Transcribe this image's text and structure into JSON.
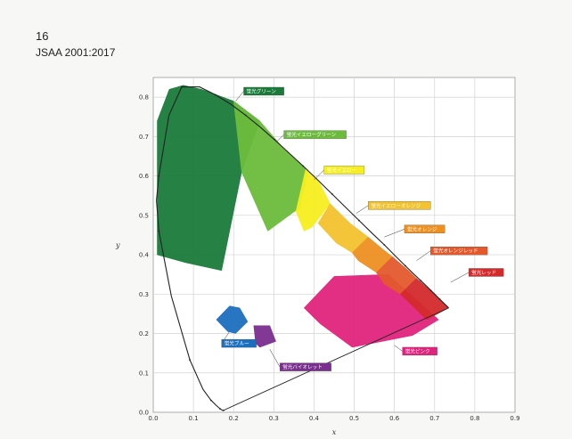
{
  "header": {
    "page_number": "16",
    "doc_id": "JSAA 2001:2017"
  },
  "chart_data": {
    "type": "chromaticity-diagram",
    "xlabel": "x",
    "ylabel": "y",
    "xlim": [
      0.0,
      0.9
    ],
    "ylim": [
      0.0,
      0.85
    ],
    "x_ticks": [
      "0.0",
      "0.1",
      "0.2",
      "0.3",
      "0.4",
      "0.5",
      "0.6",
      "0.7",
      "0.8",
      "0.9"
    ],
    "y_ticks": [
      "0.0",
      "0.1",
      "0.2",
      "0.3",
      "0.4",
      "0.5",
      "0.6",
      "0.7",
      "0.8"
    ],
    "grid": true,
    "spectral_locus": [
      [
        0.175,
        0.005
      ],
      [
        0.172,
        0.005
      ],
      [
        0.166,
        0.009
      ],
      [
        0.156,
        0.018
      ],
      [
        0.144,
        0.03
      ],
      [
        0.124,
        0.058
      ],
      [
        0.091,
        0.133
      ],
      [
        0.045,
        0.295
      ],
      [
        0.014,
        0.46
      ],
      [
        0.008,
        0.538
      ],
      [
        0.014,
        0.6
      ],
      [
        0.039,
        0.754
      ],
      [
        0.071,
        0.826
      ],
      [
        0.115,
        0.826
      ],
      [
        0.155,
        0.806
      ],
      [
        0.193,
        0.782
      ],
      [
        0.23,
        0.754
      ],
      [
        0.266,
        0.724
      ],
      [
        0.302,
        0.692
      ],
      [
        0.337,
        0.659
      ],
      [
        0.373,
        0.625
      ],
      [
        0.409,
        0.59
      ],
      [
        0.445,
        0.554
      ],
      [
        0.479,
        0.52
      ],
      [
        0.512,
        0.487
      ],
      [
        0.544,
        0.455
      ],
      [
        0.575,
        0.425
      ],
      [
        0.603,
        0.396
      ],
      [
        0.627,
        0.372
      ],
      [
        0.648,
        0.351
      ],
      [
        0.666,
        0.334
      ],
      [
        0.68,
        0.32
      ],
      [
        0.691,
        0.309
      ],
      [
        0.701,
        0.299
      ],
      [
        0.713,
        0.287
      ],
      [
        0.735,
        0.265
      ]
    ],
    "regions": [
      {
        "label": "蛍光グリーン",
        "color": "#1a7a3a",
        "polygon": [
          [
            0.01,
            0.4
          ],
          [
            0.01,
            0.74
          ],
          [
            0.04,
            0.82
          ],
          [
            0.075,
            0.83
          ],
          [
            0.12,
            0.82
          ],
          [
            0.2,
            0.79
          ],
          [
            0.265,
            0.74
          ],
          [
            0.22,
            0.61
          ],
          [
            0.17,
            0.36
          ],
          [
            0.08,
            0.38
          ]
        ]
      },
      {
        "label": "蛍光イエローグリーン",
        "color": "#6cbc3c",
        "polygon": [
          [
            0.2,
            0.79
          ],
          [
            0.265,
            0.74
          ],
          [
            0.32,
            0.675
          ],
          [
            0.385,
            0.615
          ],
          [
            0.365,
            0.52
          ],
          [
            0.285,
            0.46
          ],
          [
            0.22,
            0.61
          ]
        ]
      },
      {
        "label": "蛍光イエロー",
        "color": "#f6ee1e",
        "polygon": [
          [
            0.38,
            0.62
          ],
          [
            0.415,
            0.58
          ],
          [
            0.44,
            0.53
          ],
          [
            0.395,
            0.47
          ],
          [
            0.375,
            0.46
          ],
          [
            0.355,
            0.51
          ]
        ]
      },
      {
        "label": "蛍光イエローオレンジ",
        "color": "#f4c22e",
        "polygon": [
          [
            0.44,
            0.53
          ],
          [
            0.49,
            0.48
          ],
          [
            0.535,
            0.445
          ],
          [
            0.495,
            0.405
          ],
          [
            0.455,
            0.43
          ],
          [
            0.41,
            0.48
          ]
        ]
      },
      {
        "label": "蛍光オレンジ",
        "color": "#ee8f22",
        "polygon": [
          [
            0.535,
            0.445
          ],
          [
            0.57,
            0.415
          ],
          [
            0.595,
            0.395
          ],
          [
            0.555,
            0.355
          ],
          [
            0.51,
            0.385
          ],
          [
            0.495,
            0.405
          ]
        ]
      },
      {
        "label": "蛍光ピンク",
        "color": "#e0237c",
        "polygon": [
          [
            0.375,
            0.265
          ],
          [
            0.45,
            0.345
          ],
          [
            0.585,
            0.35
          ],
          [
            0.71,
            0.235
          ],
          [
            0.645,
            0.195
          ],
          [
            0.495,
            0.165
          ],
          [
            0.415,
            0.225
          ]
        ]
      },
      {
        "label": "蛍光オレンジレッド",
        "color": "#e4592c",
        "polygon": [
          [
            0.595,
            0.395
          ],
          [
            0.635,
            0.36
          ],
          [
            0.655,
            0.34
          ],
          [
            0.615,
            0.3
          ],
          [
            0.575,
            0.325
          ],
          [
            0.555,
            0.355
          ]
        ]
      },
      {
        "label": "蛍光レッド",
        "color": "#d32a2b",
        "polygon": [
          [
            0.655,
            0.34
          ],
          [
            0.695,
            0.305
          ],
          [
            0.735,
            0.265
          ],
          [
            0.68,
            0.235
          ],
          [
            0.64,
            0.275
          ],
          [
            0.615,
            0.3
          ]
        ]
      },
      {
        "label": "蛍光ブルー",
        "color": "#1c6fbf",
        "polygon": [
          [
            0.157,
            0.235
          ],
          [
            0.185,
            0.205
          ],
          [
            0.205,
            0.2
          ],
          [
            0.235,
            0.23
          ],
          [
            0.215,
            0.265
          ],
          [
            0.19,
            0.27
          ]
        ]
      },
      {
        "label": "蛍光バイオレット",
        "color": "#7a2e8f",
        "polygon": [
          [
            0.25,
            0.22
          ],
          [
            0.29,
            0.22
          ],
          [
            0.305,
            0.18
          ],
          [
            0.265,
            0.165
          ],
          [
            0.255,
            0.175
          ]
        ]
      }
    ],
    "callouts": [
      {
        "label": "蛍光グリーン",
        "box_color": "#1a7a3a",
        "at": [
          0.225,
          0.815
        ],
        "anchor": [
          0.205,
          0.79
        ]
      },
      {
        "label": "蛍光イエローグリーン",
        "box_color": "#6cbc3c",
        "at": [
          0.325,
          0.705
        ],
        "anchor": [
          0.305,
          0.685
        ]
      },
      {
        "label": "蛍光イエロー",
        "box_color": "#f6ee1e",
        "at": [
          0.425,
          0.615
        ],
        "anchor": [
          0.4,
          0.59
        ]
      },
      {
        "label": "蛍光イエローオレンジ",
        "box_color": "#f4c22e",
        "at": [
          0.535,
          0.525
        ],
        "anchor": [
          0.505,
          0.505
        ]
      },
      {
        "label": "蛍光オレンジ",
        "box_color": "#ee8f22",
        "at": [
          0.625,
          0.465
        ],
        "anchor": [
          0.575,
          0.445
        ]
      },
      {
        "label": "蛍光オレンジレッド",
        "box_color": "#e4592c",
        "at": [
          0.69,
          0.41
        ],
        "anchor": [
          0.655,
          0.385
        ]
      },
      {
        "label": "蛍光レッド",
        "box_color": "#d32a2b",
        "at": [
          0.785,
          0.355
        ],
        "anchor": [
          0.74,
          0.33
        ]
      },
      {
        "label": "蛍光ピンク",
        "box_color": "#e0237c",
        "at": [
          0.62,
          0.155
        ],
        "anchor": [
          0.6,
          0.17
        ]
      },
      {
        "label": "蛍光ブルー",
        "box_color": "#1c6fbf",
        "at": [
          0.17,
          0.175
        ],
        "anchor": [
          0.19,
          0.205
        ]
      },
      {
        "label": "蛍光バイオレット",
        "box_color": "#7a2e8f",
        "at": [
          0.315,
          0.115
        ],
        "anchor": [
          0.29,
          0.16
        ]
      }
    ]
  }
}
